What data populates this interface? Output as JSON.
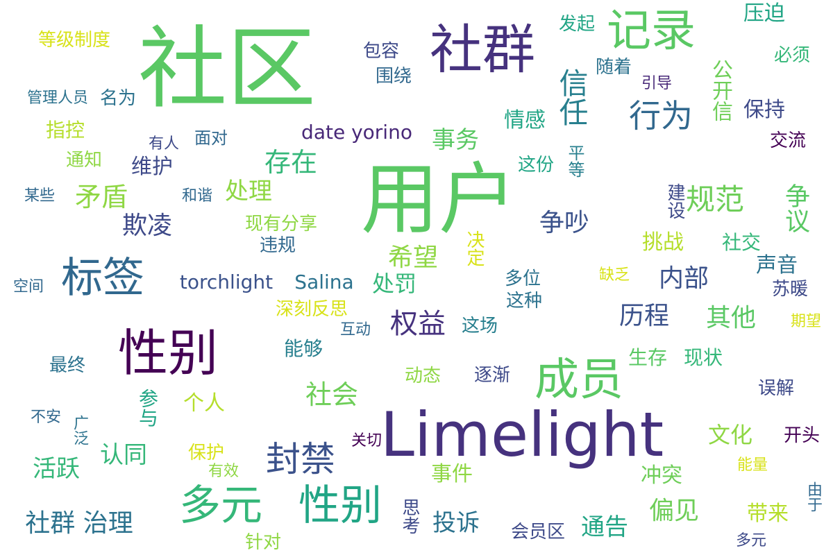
{
  "words": [
    {
      "text": "社区",
      "color": "#5ac864"
    },
    {
      "text": "用户",
      "color": "#5ac864"
    },
    {
      "text": "Limelight",
      "color": "#46327e"
    },
    {
      "text": "社群",
      "color": "#46327e"
    },
    {
      "text": "记录",
      "color": "#5ac864"
    },
    {
      "text": "性别",
      "color": "#440154"
    },
    {
      "text": "成员",
      "color": "#5ac864"
    },
    {
      "text": "标签",
      "color": "#31688e"
    },
    {
      "text": "多元",
      "color": "#35b779"
    },
    {
      "text": "性别",
      "color": "#21a585"
    },
    {
      "text": "封禁",
      "color": "#3b528b"
    },
    {
      "text": "行为",
      "color": "#31688e"
    },
    {
      "text": "信任",
      "color": "#277f8e"
    },
    {
      "text": "规范",
      "color": "#6ece58"
    },
    {
      "text": "权益",
      "color": "#46327e"
    },
    {
      "text": "存在",
      "color": "#35b779"
    },
    {
      "text": "矛盾",
      "color": "#8fd744"
    },
    {
      "text": "社会",
      "color": "#6ece58"
    },
    {
      "text": "社群 治理",
      "color": "#2c728e"
    },
    {
      "text": "争吵",
      "color": "#3b528b"
    },
    {
      "text": "内部",
      "color": "#3b528b"
    },
    {
      "text": "欺凌",
      "color": "#3e4a89"
    },
    {
      "text": "希望",
      "color": "#8fd744"
    },
    {
      "text": "其他",
      "color": "#5ac864"
    },
    {
      "text": "历程",
      "color": "#3b528b"
    },
    {
      "text": "偏见",
      "color": "#6ece58"
    },
    {
      "text": "投诉",
      "color": "#2c728e"
    },
    {
      "text": "通告",
      "color": "#21a585"
    },
    {
      "text": "认同",
      "color": "#35b779"
    },
    {
      "text": "活跃",
      "color": "#35b779"
    },
    {
      "text": "处理",
      "color": "#8fd744"
    },
    {
      "text": "事务",
      "color": "#5ac864"
    },
    {
      "text": "情感",
      "color": "#21a585"
    },
    {
      "text": "维护",
      "color": "#3e4a89"
    },
    {
      "text": "torchlight",
      "color": "#3b528b"
    },
    {
      "text": "Salina",
      "color": "#2c728e"
    },
    {
      "text": "date yorino",
      "color": "#482878"
    },
    {
      "text": "处罚",
      "color": "#35b779"
    },
    {
      "text": "文化",
      "color": "#8fd744"
    },
    {
      "text": "公开信",
      "color": "#6ece58"
    },
    {
      "text": "保持",
      "color": "#3e4a89"
    },
    {
      "text": "争议",
      "color": "#5ac864"
    },
    {
      "text": "指控",
      "color": "#b5de2b"
    },
    {
      "text": "名为",
      "color": "#2c728e"
    },
    {
      "text": "等级制度",
      "color": "#d8e219"
    },
    {
      "text": "压迫",
      "color": "#21a585"
    },
    {
      "text": "发起",
      "color": "#21a585"
    },
    {
      "text": "包容",
      "color": "#3e4a89"
    },
    {
      "text": "围绕",
      "color": "#31688e"
    },
    {
      "text": "随着",
      "color": "#2c728e"
    },
    {
      "text": "必须",
      "color": "#35b779"
    },
    {
      "text": "引导",
      "color": "#482878"
    },
    {
      "text": "管理人员",
      "color": "#2c728e"
    },
    {
      "text": "面对",
      "color": "#31688e"
    },
    {
      "text": "有人",
      "color": "#3e4a89"
    },
    {
      "text": "通知",
      "color": "#8fd744"
    },
    {
      "text": "交流",
      "color": "#440154"
    },
    {
      "text": "平等",
      "color": "#277f8e"
    },
    {
      "text": "这份",
      "color": "#21a585"
    },
    {
      "text": "某些",
      "color": "#31688e"
    },
    {
      "text": "和谐",
      "color": "#31688e"
    },
    {
      "text": "现有分享",
      "color": "#8fd744"
    },
    {
      "text": "违规",
      "color": "#31688e"
    },
    {
      "text": "建设",
      "color": "#3e4a89"
    },
    {
      "text": "挑战",
      "color": "#b5de2b"
    },
    {
      "text": "社交",
      "color": "#35b779"
    },
    {
      "text": "决定",
      "color": "#d8e219"
    },
    {
      "text": "声音",
      "color": "#2c728e"
    },
    {
      "text": "空间",
      "color": "#31688e"
    },
    {
      "text": "多位",
      "color": "#2c728e"
    },
    {
      "text": "这种",
      "color": "#2c728e"
    },
    {
      "text": "缺乏",
      "color": "#d8e219"
    },
    {
      "text": "苏暖",
      "color": "#3e4a89"
    },
    {
      "text": "深刻反思",
      "color": "#d8e219"
    },
    {
      "text": "互动",
      "color": "#31688e"
    },
    {
      "text": "这场",
      "color": "#277f8e"
    },
    {
      "text": "期望",
      "color": "#d8e219"
    },
    {
      "text": "能够",
      "color": "#277f8e"
    },
    {
      "text": "最终",
      "color": "#2c728e"
    },
    {
      "text": "生存",
      "color": "#5ac864"
    },
    {
      "text": "现状",
      "color": "#35b779"
    },
    {
      "text": "动态",
      "color": "#8fd744"
    },
    {
      "text": "逐渐",
      "color": "#3e4a89"
    },
    {
      "text": "误解",
      "color": "#3e4a89"
    },
    {
      "text": "参与",
      "color": "#21a585"
    },
    {
      "text": "个人",
      "color": "#b5de2b"
    },
    {
      "text": "不安",
      "color": "#31688e"
    },
    {
      "text": "广泛",
      "color": "#2c728e"
    },
    {
      "text": "关切",
      "color": "#440154"
    },
    {
      "text": "开头",
      "color": "#440154"
    },
    {
      "text": "保护",
      "color": "#d8e219"
    },
    {
      "text": "有效",
      "color": "#8fd744"
    },
    {
      "text": "事件",
      "color": "#8fd744"
    },
    {
      "text": "冲突",
      "color": "#6ece58"
    },
    {
      "text": "能量",
      "color": "#d8e219"
    },
    {
      "text": "由于",
      "color": "#31688e"
    },
    {
      "text": "带来",
      "color": "#b5de2b"
    },
    {
      "text": "思考",
      "color": "#3e4a89"
    },
    {
      "text": "会员区",
      "color": "#3e4a89"
    },
    {
      "text": "针对",
      "color": "#8fd744"
    },
    {
      "text": "多元",
      "color": "#3e4a89"
    }
  ]
}
